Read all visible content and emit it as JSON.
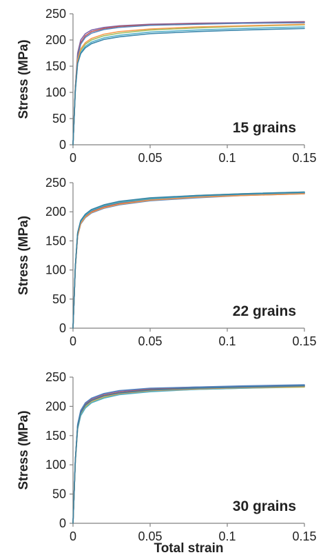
{
  "chart_data": [
    {
      "type": "line",
      "annotation": "15 grains",
      "ylabel": "Stress (MPa)",
      "xlabel": "",
      "xlim": [
        0,
        0.15
      ],
      "ylim": [
        0,
        250
      ],
      "xticks": [
        "0",
        "0.05",
        "0.1",
        "0.15"
      ],
      "yticks": [
        "0",
        "50",
        "100",
        "150",
        "200",
        "250"
      ],
      "grid": false,
      "series": [
        {
          "color": "#7a5fa8",
          "x": [
            0,
            0.0015,
            0.003,
            0.005,
            0.008,
            0.012,
            0.02,
            0.03,
            0.05,
            0.08,
            0.11,
            0.15
          ],
          "y": [
            0,
            110,
            175,
            200,
            212,
            219,
            224,
            227,
            230,
            232,
            233,
            235
          ]
        },
        {
          "color": "#c0504d",
          "x": [
            0,
            0.0015,
            0.003,
            0.005,
            0.008,
            0.012,
            0.02,
            0.03,
            0.05,
            0.08,
            0.11,
            0.15
          ],
          "y": [
            0,
            108,
            170,
            195,
            208,
            216,
            222,
            226,
            229,
            231,
            232,
            234
          ]
        },
        {
          "color": "#4f81bd",
          "x": [
            0,
            0.0015,
            0.003,
            0.005,
            0.008,
            0.012,
            0.02,
            0.03,
            0.05,
            0.08,
            0.11,
            0.15
          ],
          "y": [
            0,
            107,
            168,
            192,
            205,
            213,
            220,
            224,
            228,
            230,
            232,
            233
          ]
        },
        {
          "color": "#9bbb59",
          "x": [
            0,
            0.0015,
            0.003,
            0.005,
            0.008,
            0.012,
            0.02,
            0.03,
            0.05,
            0.08,
            0.11,
            0.15
          ],
          "y": [
            0,
            105,
            160,
            180,
            192,
            200,
            208,
            213,
            219,
            223,
            226,
            229
          ]
        },
        {
          "color": "#4bacc6",
          "x": [
            0,
            0.0015,
            0.003,
            0.005,
            0.008,
            0.012,
            0.02,
            0.03,
            0.05,
            0.08,
            0.11,
            0.15
          ],
          "y": [
            0,
            104,
            157,
            176,
            188,
            196,
            204,
            209,
            215,
            219,
            222,
            225
          ]
        },
        {
          "color": "#f79646",
          "x": [
            0,
            0.0015,
            0.003,
            0.005,
            0.008,
            0.012,
            0.02,
            0.03,
            0.05,
            0.08,
            0.11,
            0.15
          ],
          "y": [
            0,
            106,
            162,
            183,
            195,
            203,
            211,
            216,
            221,
            225,
            227,
            230
          ]
        },
        {
          "color": "#2e7fa8",
          "x": [
            0,
            0.0015,
            0.003,
            0.005,
            0.008,
            0.012,
            0.02,
            0.03,
            0.05,
            0.08,
            0.11,
            0.15
          ],
          "y": [
            0,
            103,
            155,
            174,
            185,
            193,
            201,
            206,
            212,
            216,
            219,
            222
          ]
        }
      ]
    },
    {
      "type": "line",
      "annotation": "22 grains",
      "ylabel": "Stress (MPa)",
      "xlabel": "",
      "xlim": [
        0,
        0.15
      ],
      "ylim": [
        0,
        250
      ],
      "xticks": [
        "0",
        "0.05",
        "0.1",
        "0.15"
      ],
      "yticks": [
        "0",
        "50",
        "100",
        "150",
        "200",
        "250"
      ],
      "grid": false,
      "series": [
        {
          "color": "#7a5fa8",
          "x": [
            0,
            0.0015,
            0.003,
            0.005,
            0.008,
            0.012,
            0.02,
            0.03,
            0.05,
            0.08,
            0.11,
            0.15
          ],
          "y": [
            0,
            105,
            160,
            181,
            192,
            200,
            208,
            214,
            221,
            226,
            229,
            232
          ]
        },
        {
          "color": "#c0504d",
          "x": [
            0,
            0.0015,
            0.003,
            0.005,
            0.008,
            0.012,
            0.02,
            0.03,
            0.05,
            0.08,
            0.11,
            0.15
          ],
          "y": [
            0,
            105,
            161,
            182,
            193,
            201,
            209,
            215,
            222,
            227,
            230,
            233
          ]
        },
        {
          "color": "#4f81bd",
          "x": [
            0,
            0.0015,
            0.003,
            0.005,
            0.008,
            0.012,
            0.02,
            0.03,
            0.05,
            0.08,
            0.11,
            0.15
          ],
          "y": [
            0,
            104,
            158,
            179,
            190,
            198,
            206,
            212,
            219,
            224,
            228,
            231
          ]
        },
        {
          "color": "#9bbb59",
          "x": [
            0,
            0.0015,
            0.003,
            0.005,
            0.008,
            0.012,
            0.02,
            0.03,
            0.05,
            0.08,
            0.11,
            0.15
          ],
          "y": [
            0,
            106,
            163,
            184,
            195,
            203,
            211,
            217,
            223,
            228,
            231,
            234
          ]
        },
        {
          "color": "#4bacc6",
          "x": [
            0,
            0.0015,
            0.003,
            0.005,
            0.008,
            0.012,
            0.02,
            0.03,
            0.05,
            0.08,
            0.11,
            0.15
          ],
          "y": [
            0,
            105,
            162,
            183,
            194,
            202,
            210,
            216,
            222,
            227,
            230,
            233
          ]
        },
        {
          "color": "#f79646",
          "x": [
            0,
            0.0015,
            0.003,
            0.005,
            0.008,
            0.012,
            0.02,
            0.03,
            0.05,
            0.08,
            0.11,
            0.15
          ],
          "y": [
            0,
            104,
            159,
            180,
            191,
            199,
            207,
            213,
            220,
            225,
            228,
            231
          ]
        },
        {
          "color": "#2e7fa8",
          "x": [
            0,
            0.0015,
            0.003,
            0.005,
            0.008,
            0.012,
            0.02,
            0.03,
            0.05,
            0.08,
            0.11,
            0.15
          ],
          "y": [
            0,
            106,
            164,
            185,
            196,
            204,
            212,
            218,
            224,
            228,
            231,
            234
          ]
        }
      ]
    },
    {
      "type": "line",
      "annotation": "30 grains",
      "ylabel": "Stress (MPa)",
      "xlabel": "Total strain",
      "xlim": [
        0,
        0.15
      ],
      "ylim": [
        0,
        250
      ],
      "xticks": [
        "0",
        "0.05",
        "0.1",
        "0.15"
      ],
      "yticks": [
        "0",
        "50",
        "100",
        "150",
        "200",
        "250"
      ],
      "grid": false,
      "series": [
        {
          "color": "#7a5fa8",
          "x": [
            0,
            0.0015,
            0.003,
            0.005,
            0.008,
            0.012,
            0.02,
            0.03,
            0.05,
            0.08,
            0.11,
            0.15
          ],
          "y": [
            0,
            108,
            168,
            192,
            205,
            213,
            221,
            226,
            230,
            233,
            234,
            236
          ]
        },
        {
          "color": "#c0504d",
          "x": [
            0,
            0.0015,
            0.003,
            0.005,
            0.008,
            0.012,
            0.02,
            0.03,
            0.05,
            0.08,
            0.11,
            0.15
          ],
          "y": [
            0,
            107,
            166,
            190,
            203,
            211,
            219,
            224,
            229,
            232,
            233,
            235
          ]
        },
        {
          "color": "#4f81bd",
          "x": [
            0,
            0.0015,
            0.003,
            0.005,
            0.008,
            0.012,
            0.02,
            0.03,
            0.05,
            0.08,
            0.11,
            0.15
          ],
          "y": [
            0,
            108,
            169,
            193,
            206,
            214,
            222,
            227,
            231,
            233,
            235,
            237
          ]
        },
        {
          "color": "#9bbb59",
          "x": [
            0,
            0.0015,
            0.003,
            0.005,
            0.008,
            0.012,
            0.02,
            0.03,
            0.05,
            0.08,
            0.11,
            0.15
          ],
          "y": [
            0,
            106,
            163,
            186,
            199,
            207,
            215,
            221,
            226,
            229,
            231,
            233
          ]
        },
        {
          "color": "#4bacc6",
          "x": [
            0,
            0.0015,
            0.003,
            0.005,
            0.008,
            0.012,
            0.02,
            0.03,
            0.05,
            0.08,
            0.11,
            0.15
          ],
          "y": [
            0,
            105,
            161,
            184,
            197,
            206,
            214,
            220,
            225,
            229,
            231,
            234
          ]
        },
        {
          "color": "#f79646",
          "x": [
            0,
            0.0015,
            0.003,
            0.005,
            0.008,
            0.012,
            0.02,
            0.03,
            0.05,
            0.08,
            0.11,
            0.15
          ],
          "y": [
            0,
            106,
            164,
            188,
            201,
            209,
            217,
            222,
            227,
            230,
            232,
            234
          ]
        },
        {
          "color": "#2e7fa8",
          "x": [
            0,
            0.0015,
            0.003,
            0.005,
            0.008,
            0.012,
            0.02,
            0.03,
            0.05,
            0.08,
            0.11,
            0.15
          ],
          "y": [
            0,
            107,
            165,
            189,
            202,
            210,
            218,
            223,
            228,
            231,
            233,
            235
          ]
        }
      ]
    }
  ]
}
